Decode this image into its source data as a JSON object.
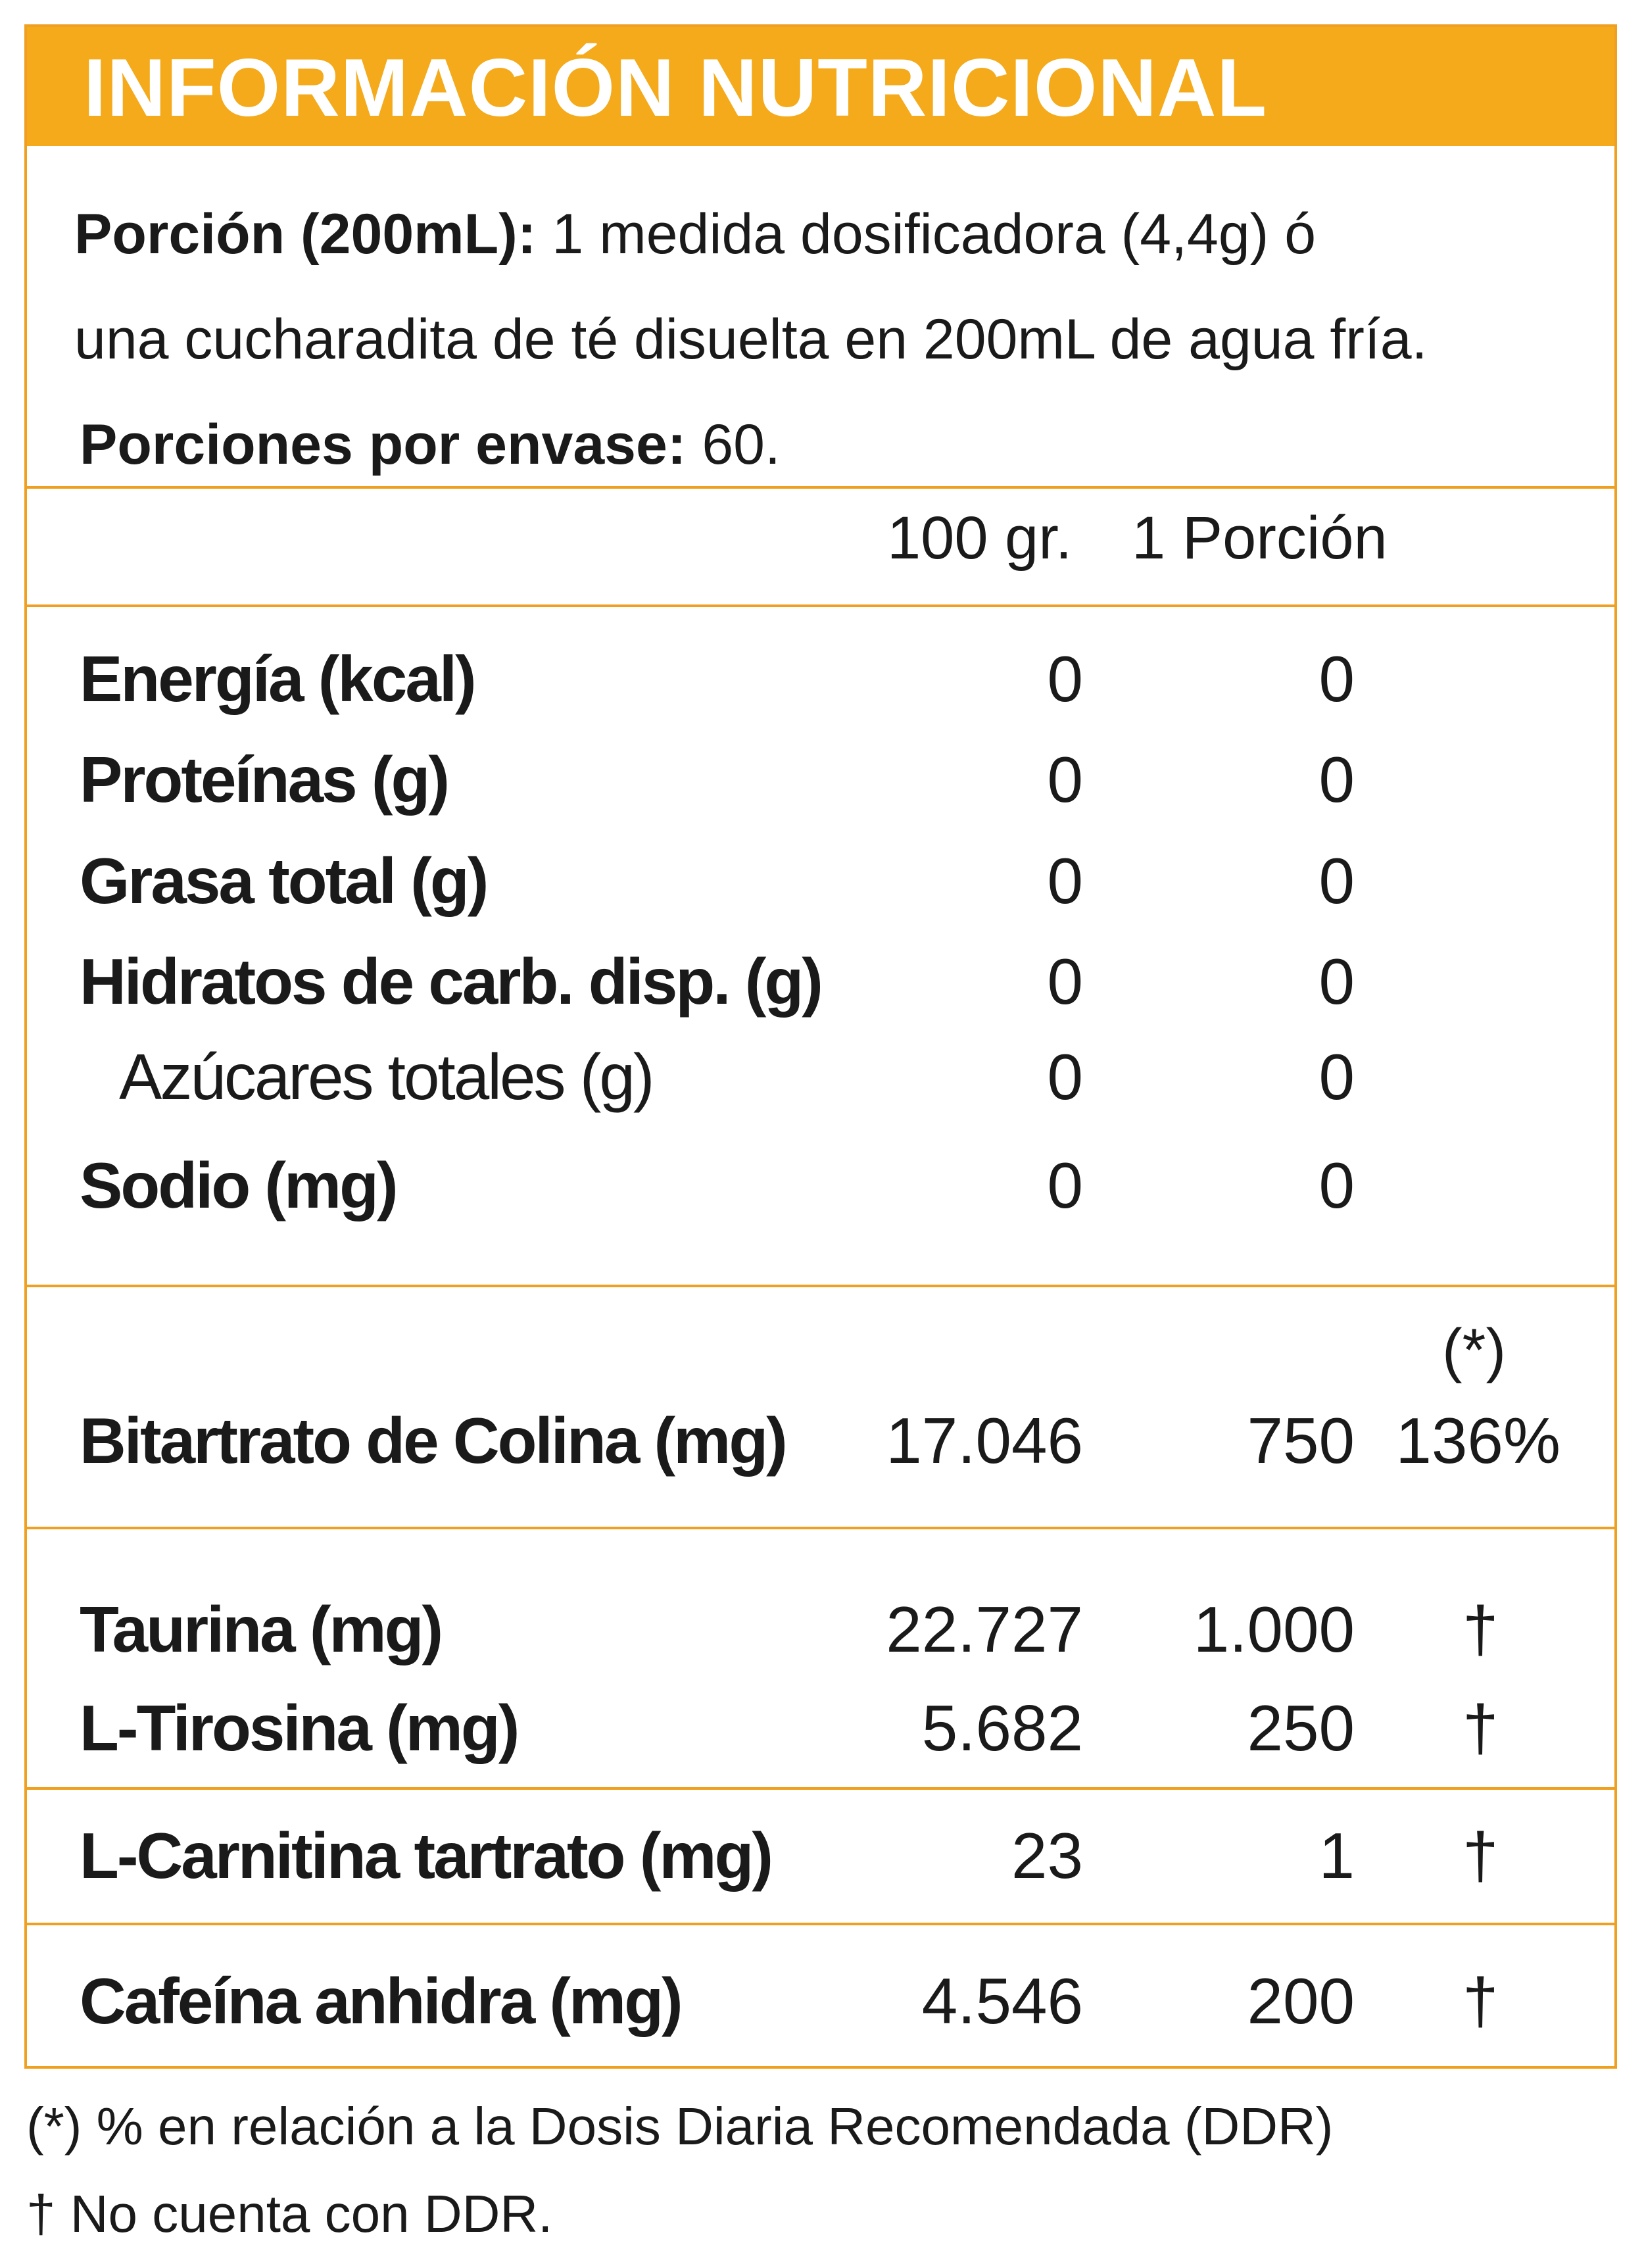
{
  "header": {
    "title": "INFORMACIÓN NUTRICIONAL"
  },
  "serving": {
    "line1_bold": "Porción (200mL):",
    "line1_rest": " 1 medida dosificadora (4,4g) ó",
    "line2": "una cucharadita de té disuelta en 200mL de agua fría.",
    "line3_bold": "Porciones por envase:",
    "line3_rest": " 60."
  },
  "columns": {
    "per100": "100 gr.",
    "perServing": "1 Porción"
  },
  "nutrients": [
    {
      "name": "Energía (kcal)",
      "per100": "0",
      "perServing": "0"
    },
    {
      "name": "Proteínas (g)",
      "per100": "0",
      "perServing": "0"
    },
    {
      "name": "Grasa total (g)",
      "per100": "0",
      "perServing": "0"
    },
    {
      "name": "Hidratos de carb. disp. (g)",
      "per100": "0",
      "perServing": "0"
    },
    {
      "name": "Azúcares totales (g)",
      "per100": "0",
      "perServing": "0"
    },
    {
      "name": "Sodio (mg)",
      "per100": "0",
      "perServing": "0"
    }
  ],
  "ddr_marker": "(*)",
  "supplements": [
    {
      "name": "Bitartrato de Colina (mg)",
      "per100": "17.046",
      "perServing": "750",
      "ddr": "136%"
    },
    {
      "name": "Taurina (mg)",
      "per100": "22.727",
      "perServing": "1.000",
      "ddr": "†"
    },
    {
      "name": "L-Tirosina (mg)",
      "per100": "5.682",
      "perServing": "250",
      "ddr": "†"
    },
    {
      "name": "L-Carnitina tartrato (mg)",
      "per100": "23",
      "perServing": "1",
      "ddr": "†"
    },
    {
      "name": "Cafeína anhidra (mg)",
      "per100": "4.546",
      "perServing": "200",
      "ddr": "†"
    }
  ],
  "footnotes": [
    "(*) % en relación a la Dosis Diaria Recomendada (DDR)",
    "† No cuenta con DDR."
  ],
  "colors": {
    "accent": "#f4aa1a",
    "border": "#f0a020",
    "text": "#1a1a1a"
  }
}
